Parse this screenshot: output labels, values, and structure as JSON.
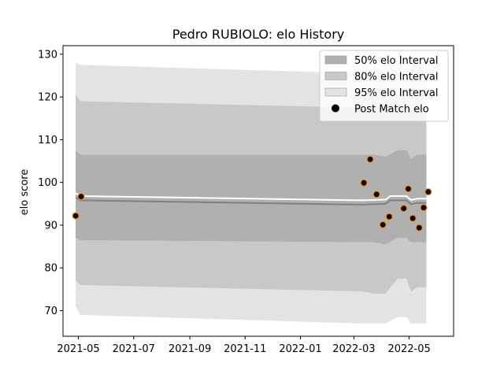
{
  "chart_data": {
    "type": "line",
    "title": "Pedro RUBIOLO: elo History",
    "xlabel": "",
    "ylabel": "elo score",
    "xlim": [
      "2021-04-14",
      "2022-06-19"
    ],
    "ylim": [
      64,
      132
    ],
    "x_ticks": [
      "2021-05",
      "2021-07",
      "2021-09",
      "2021-11",
      "2022-01",
      "2022-03",
      "2022-05"
    ],
    "y_ticks": [
      70,
      80,
      90,
      100,
      110,
      120,
      130
    ],
    "legend_position": "top-right",
    "colors": {
      "band50": "#b0b0b0",
      "band80": "#c8c8c8",
      "band95": "#e3e3e3",
      "mean_line": "#ffffff",
      "pre_line": "#808080",
      "point_fill": "#000000",
      "point_edge": "#ff8c00"
    },
    "series": [
      {
        "name": "95% elo Interval",
        "x": [
          "2021-04-28",
          "2021-05-03",
          "2022-03-10",
          "2022-03-23",
          "2022-04-05",
          "2022-04-18",
          "2022-04-28",
          "2022-05-03",
          "2022-05-10",
          "2022-05-20"
        ],
        "upper": [
          128,
          127.5,
          125.5,
          125.5,
          125.5,
          125.5,
          125.5,
          125,
          125.5,
          125.5
        ],
        "lower": [
          71,
          69,
          67,
          67,
          67,
          68.5,
          68.5,
          67,
          67,
          67
        ]
      },
      {
        "name": "80% elo Interval",
        "x": [
          "2021-04-28",
          "2021-05-03",
          "2022-03-10",
          "2022-03-23",
          "2022-04-05",
          "2022-04-18",
          "2022-04-28",
          "2022-05-03",
          "2022-05-10",
          "2022-05-20"
        ],
        "upper": [
          120.5,
          119,
          117.5,
          117.5,
          117.5,
          117.5,
          117.5,
          117,
          117.5,
          117.5
        ],
        "lower": [
          77,
          76,
          74.5,
          74,
          74,
          77.5,
          77.5,
          74.5,
          75.5,
          75.5
        ]
      },
      {
        "name": "50% elo Interval",
        "x": [
          "2021-04-28",
          "2021-05-03",
          "2022-03-10",
          "2022-03-23",
          "2022-04-05",
          "2022-04-18",
          "2022-04-28",
          "2022-05-03",
          "2022-05-10",
          "2022-05-20"
        ],
        "upper": [
          107.5,
          106.5,
          106.5,
          106.5,
          106,
          107.5,
          107.5,
          105.5,
          106.5,
          106.5
        ],
        "lower": [
          87,
          86.5,
          86,
          86,
          85.5,
          87,
          87,
          86,
          86,
          86
        ]
      },
      {
        "name": "mean",
        "x": [
          "2021-04-28",
          "2021-05-03",
          "2022-03-10",
          "2022-03-23",
          "2022-04-05",
          "2022-04-10",
          "2022-04-28",
          "2022-05-03",
          "2022-05-10",
          "2022-05-20"
        ],
        "values": [
          97.5,
          96.8,
          95.8,
          95.9,
          96.0,
          96.8,
          96.8,
          95.9,
          96.2,
          96.2
        ]
      },
      {
        "name": "Post Match elo",
        "x": [
          "2021-04-28",
          "2021-05-04",
          "2022-03-12",
          "2022-03-19",
          "2022-03-26",
          "2022-04-02",
          "2022-04-09",
          "2022-04-25",
          "2022-04-30",
          "2022-05-05",
          "2022-05-12",
          "2022-05-17",
          "2022-05-22"
        ],
        "values": [
          92.2,
          96.7,
          99.9,
          105.4,
          97.2,
          90.1,
          92.0,
          93.9,
          98.5,
          91.6,
          89.4,
          94.1,
          97.8
        ]
      }
    ]
  }
}
